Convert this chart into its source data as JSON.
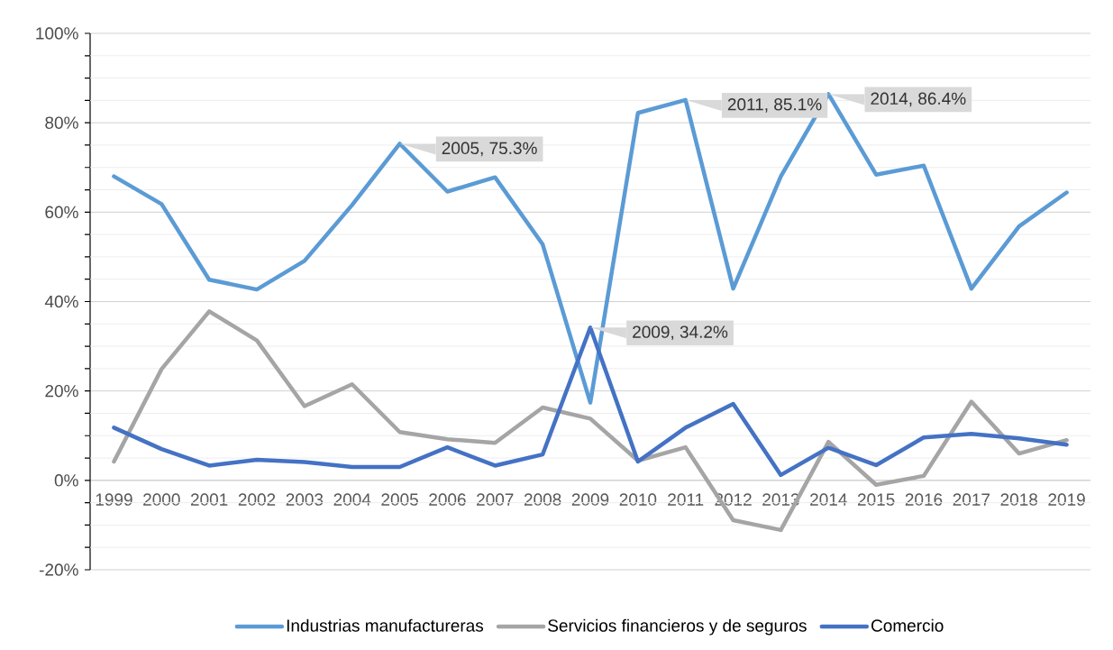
{
  "chart_data": {
    "type": "line",
    "categories": [
      "1999",
      "2000",
      "2001",
      "2002",
      "2003",
      "2004",
      "2005",
      "2006",
      "2007",
      "2008",
      "2009",
      "2010",
      "2011",
      "2012",
      "2013",
      "2014",
      "2015",
      "2016",
      "2017",
      "2018",
      "2019"
    ],
    "series": [
      {
        "name": "Industrias manufactureras",
        "color": "#5b9bd5",
        "values": [
          68.0,
          61.8,
          44.9,
          42.7,
          49.1,
          61.6,
          75.3,
          64.6,
          67.8,
          52.8,
          17.4,
          82.2,
          85.1,
          42.9,
          68.0,
          86.4,
          68.4,
          70.4,
          42.9,
          56.8,
          64.4
        ]
      },
      {
        "name": "Servicios financieros y de seguros",
        "color": "#a5a5a5",
        "values": [
          4.2,
          24.9,
          37.8,
          31.3,
          16.6,
          21.5,
          10.8,
          9.2,
          8.4,
          16.3,
          13.8,
          4.4,
          7.4,
          -8.9,
          -11.1,
          8.6,
          -1.0,
          1.0,
          17.6,
          6.0,
          9.0
        ]
      },
      {
        "name": "Comercio",
        "color": "#4472c4",
        "values": [
          11.8,
          7.0,
          3.3,
          4.6,
          4.1,
          3.0,
          3.0,
          7.4,
          3.3,
          5.8,
          34.2,
          4.2,
          11.8,
          17.1,
          1.2,
          7.3,
          3.4,
          9.6,
          10.4,
          9.4,
          8.0
        ]
      }
    ],
    "ylim": [
      -20,
      100
    ],
    "yticks": [
      {
        "value": -20,
        "label": "-20%"
      },
      {
        "value": -15,
        "label": null
      },
      {
        "value": -10,
        "label": null
      },
      {
        "value": -5,
        "label": null
      },
      {
        "value": 0,
        "label": "0%"
      },
      {
        "value": 5,
        "label": null
      },
      {
        "value": 10,
        "label": null
      },
      {
        "value": 15,
        "label": null
      },
      {
        "value": 20,
        "label": "20%"
      },
      {
        "value": 25,
        "label": null
      },
      {
        "value": 30,
        "label": null
      },
      {
        "value": 35,
        "label": null
      },
      {
        "value": 40,
        "label": "40%"
      },
      {
        "value": 45,
        "label": null
      },
      {
        "value": 50,
        "label": null
      },
      {
        "value": 55,
        "label": null
      },
      {
        "value": 60,
        "label": "60%"
      },
      {
        "value": 65,
        "label": null
      },
      {
        "value": 70,
        "label": null
      },
      {
        "value": 75,
        "label": null
      },
      {
        "value": 80,
        "label": "80%"
      },
      {
        "value": 85,
        "label": null
      },
      {
        "value": 90,
        "label": null
      },
      {
        "value": 95,
        "label": null
      },
      {
        "value": 100,
        "label": "100%"
      }
    ],
    "grid": "y",
    "legend": "bottom",
    "line_style": "solid",
    "annotations": [
      {
        "text": "2005, 75.3%",
        "x": "2005",
        "y": 75.3
      },
      {
        "text": "2009, 34.2%",
        "x": "2009",
        "y": 34.2
      },
      {
        "text": "2011, 85.1%",
        "x": "2011",
        "y": 85.1
      },
      {
        "text": "2014, 86.4%",
        "x": "2014",
        "y": 86.4
      }
    ]
  }
}
